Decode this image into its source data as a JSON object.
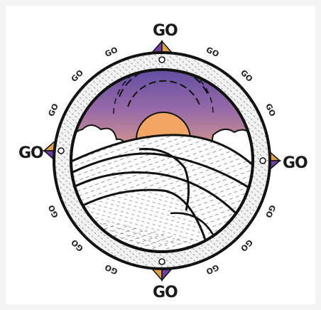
{
  "artwork": {
    "cardinal_labels": {
      "north": "GO",
      "south": "GO",
      "west": "GO",
      "east": "GO"
    },
    "minor_label": "GO",
    "colors": {
      "sky_top": "#5a4aa0",
      "sky_mid": "#9a6aa8",
      "sky_low": "#d49a8c",
      "sun": "#f3a564",
      "ring_fill": "#f2f2f2",
      "ink": "#111111",
      "arrow_orange": "#e0a247",
      "arrow_purple": "#6d3fa0"
    }
  }
}
